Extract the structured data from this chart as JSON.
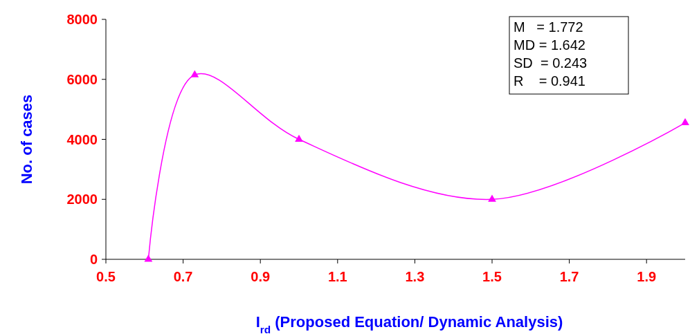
{
  "chart_data": {
    "type": "line",
    "xlabel": "I$_{rd}$ (Proposed Equation/ Dynamic Analysis)",
    "ylabel": "No. of cases",
    "x": [
      0.61,
      0.73,
      1.0,
      1.5,
      2.0
    ],
    "series": [
      {
        "color": "#ff00ff",
        "values": [
          0,
          6150,
          4000,
          2000,
          4550
        ]
      }
    ],
    "xlim": [
      0.5,
      2.0
    ],
    "xticks": [
      {
        "value": 0.5,
        "label": "0.5"
      },
      {
        "value": 0.7,
        "label": "0.7"
      },
      {
        "value": 0.9,
        "label": "0.9"
      },
      {
        "value": 1.1,
        "label": "1.1"
      },
      {
        "value": 1.3,
        "label": "1.3"
      },
      {
        "value": 1.5,
        "label": "1.5"
      },
      {
        "value": 1.7,
        "label": "1.7"
      },
      {
        "value": 1.9,
        "label": "1.9"
      }
    ],
    "ylim": [
      0,
      8000
    ],
    "yticks": [
      0,
      2000,
      4000,
      6000,
      8000
    ],
    "annotations": [
      "M   = 1.772",
      "MD = 1.642",
      "SD  = 0.243",
      "R    = 0.941"
    ],
    "marker": "triangle",
    "line_style": "solid",
    "grid": false
  }
}
